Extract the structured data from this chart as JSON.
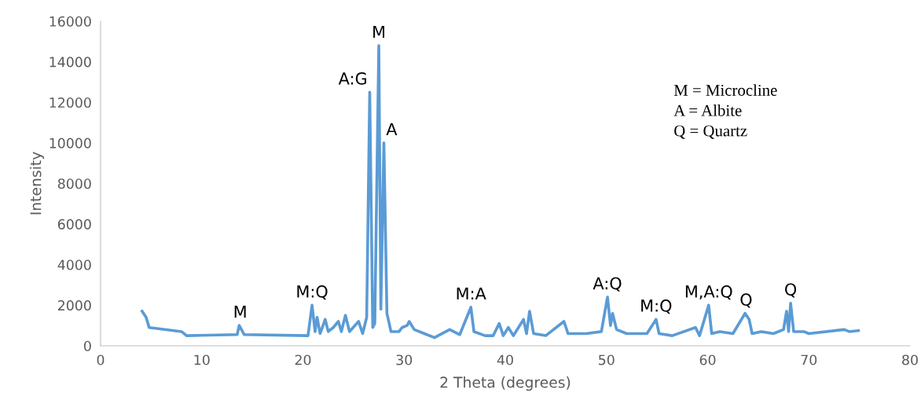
{
  "chart_data": {
    "type": "line",
    "xlabel": "2 Theta (degrees)",
    "ylabel": "Intensity",
    "xlim": [
      0,
      80
    ],
    "xticks": [
      0,
      10,
      20,
      30,
      40,
      50,
      60,
      70,
      80
    ],
    "ylim": [
      0,
      16000
    ],
    "yticks": [
      0,
      2000,
      4000,
      6000,
      8000,
      10000,
      12000,
      14000,
      16000
    ],
    "grid": false,
    "legend": false,
    "marker": "none",
    "line_style": "solid",
    "x": [
      4.1,
      4.5,
      4.8,
      8,
      8.5,
      13.5,
      13.7,
      14.2,
      20.5,
      20.9,
      21.2,
      21.4,
      21.7,
      22.2,
      22.5,
      23,
      23.5,
      23.8,
      24.2,
      24.6,
      25.5,
      25.9,
      26.3,
      26.6,
      26.9,
      27.1,
      27.5,
      27.7,
      28,
      28.3,
      28.7,
      29.5,
      29.8,
      30.3,
      30.5,
      31,
      32,
      33,
      34.5,
      35.5,
      36.6,
      36.9,
      38,
      38.8,
      39.4,
      39.8,
      40.3,
      40.8,
      41.8,
      42.1,
      42.4,
      42.8,
      44,
      45.8,
      46.2,
      47,
      48,
      49.5,
      50.1,
      50.4,
      50.6,
      51,
      52,
      54,
      54.9,
      55.2,
      56.5,
      58.8,
      59.2,
      60.1,
      60.4,
      61.2,
      62.5,
      63.7,
      64.1,
      64.4,
      65.3,
      66.5,
      67.5,
      67.8,
      68,
      68.2,
      68.5,
      69.5,
      70,
      73.5,
      74,
      74.9
    ],
    "series": [
      {
        "color": "#5b9bd5",
        "values": [
          1700,
          1400,
          900,
          700,
          500,
          550,
          1000,
          550,
          500,
          2000,
          700,
          1400,
          600,
          1300,
          700,
          900,
          1200,
          700,
          1500,
          700,
          1200,
          600,
          1400,
          12500,
          900,
          1100,
          14800,
          1800,
          10000,
          1600,
          700,
          700,
          900,
          1000,
          1200,
          800,
          600,
          400,
          800,
          550,
          1900,
          700,
          500,
          500,
          1100,
          500,
          900,
          500,
          1300,
          600,
          1700,
          600,
          500,
          1200,
          600,
          600,
          600,
          700,
          2400,
          1000,
          1600,
          800,
          600,
          600,
          1300,
          600,
          500,
          900,
          500,
          2000,
          600,
          700,
          600,
          1600,
          1300,
          600,
          700,
          600,
          800,
          1700,
          700,
          2100,
          700,
          700,
          600,
          800,
          700,
          750
        ]
      }
    ],
    "annotations": [
      {
        "text": "M",
        "x": 13.8,
        "y": 1000
      },
      {
        "text": "M:Q",
        "x": 20.9,
        "y": 2000
      },
      {
        "text": "A:G",
        "x": 26.6,
        "y": 12500
      },
      {
        "text": "M",
        "x": 27.5,
        "y": 14800
      },
      {
        "text": "A",
        "x": 28,
        "y": 10000
      },
      {
        "text": "M:A",
        "x": 36.6,
        "y": 1900
      },
      {
        "text": "A:Q",
        "x": 50.1,
        "y": 2400
      },
      {
        "text": "M:Q",
        "x": 54.9,
        "y": 1300
      },
      {
        "text": "M,A:Q",
        "x": 60.1,
        "y": 2000
      },
      {
        "text": "Q",
        "x": 63.8,
        "y": 1600
      },
      {
        "text": "Q",
        "x": 68.2,
        "y": 2100
      },
      "M = Microcline",
      "A = Albite",
      "Q = Quartz"
    ]
  }
}
